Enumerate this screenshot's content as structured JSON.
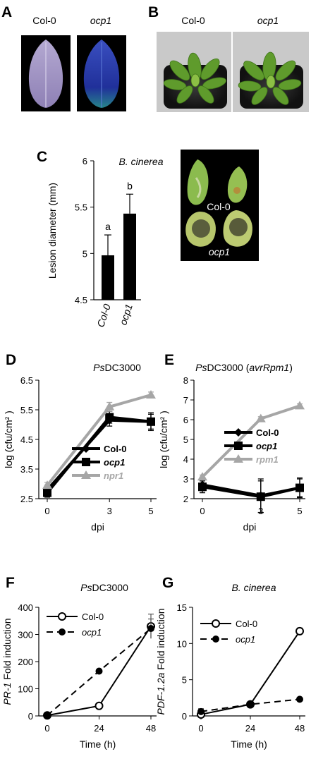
{
  "panel_A": {
    "letter": "A",
    "labels": [
      "Col-0",
      "ocp1"
    ]
  },
  "panel_B": {
    "letter": "B",
    "labels": [
      "Col-0",
      "ocp1"
    ]
  },
  "panel_C": {
    "letter": "C",
    "photo_labels": [
      "Col-0",
      "ocp1"
    ]
  },
  "panel_D": {
    "letter": "D"
  },
  "panel_E": {
    "letter": "E"
  },
  "panel_F": {
    "letter": "F"
  },
  "panel_G": {
    "letter": "G"
  },
  "colors": {
    "bar": "#000000",
    "col0_line": "#000000",
    "npr1_line": "#a6a6a6",
    "photo_bg": "#000000",
    "pot_bg": "#c9c9c9"
  },
  "chart_data": [
    {
      "id": "C",
      "type": "bar",
      "title": "B. cinerea",
      "xlabel": "",
      "ylabel": "Lesion diameter (mm)",
      "categories": [
        "Col-0",
        "ocp1"
      ],
      "values": [
        4.98,
        5.43
      ],
      "errors": [
        0.22,
        0.21
      ],
      "significance": [
        "a",
        "b"
      ],
      "ylim": [
        4.5,
        6
      ],
      "yticks": [
        "4.5",
        "5",
        "5.5",
        "6"
      ]
    },
    {
      "id": "D",
      "type": "line",
      "title": "PsDC3000",
      "title_prefix": "Ps",
      "title_rest": "DC3000",
      "xlabel": "dpi",
      "ylabel": "log (cfu/cm² )",
      "x": [
        0,
        3,
        5
      ],
      "xticks": [
        "0",
        "3",
        "5"
      ],
      "ylim": [
        2.5,
        6.5
      ],
      "yticks": [
        "2.5",
        "3.5",
        "4.5",
        "5.5",
        "6.5"
      ],
      "series": [
        {
          "name": "Col-0",
          "values": [
            2.8,
            5.15,
            5.1
          ],
          "errors": [
            0.15,
            0.2,
            0.25
          ],
          "marker": "diamond",
          "color": "#000000"
        },
        {
          "name": "ocp1",
          "values": [
            2.7,
            5.25,
            5.1
          ],
          "errors": [
            0.15,
            0.2,
            0.3
          ],
          "marker": "square",
          "color": "#000000"
        },
        {
          "name": "npr1",
          "values": [
            2.95,
            5.6,
            6.0
          ],
          "errors": [
            0.1,
            0.15,
            0.1
          ],
          "marker": "triangle",
          "color": "#a6a6a6"
        }
      ],
      "legend": "bottom-right"
    },
    {
      "id": "E",
      "type": "line",
      "title": "PsDC3000 (avrRpm1)",
      "title_prefix": "Ps",
      "title_mid": "DC3000 (",
      "title_ital": "avrRpm1",
      "title_end": ")",
      "xlabel": "dpi",
      "ylabel": "log (cfu/cm² )",
      "x": [
        0,
        3,
        5
      ],
      "xticks": [
        "0",
        "3",
        "5"
      ],
      "ylim": [
        2,
        8
      ],
      "yticks": [
        "2",
        "3",
        "4",
        "5",
        "6",
        "7",
        "8"
      ],
      "series": [
        {
          "name": "Col-0",
          "values": [
            2.7,
            2.15,
            2.55
          ],
          "errors": [
            0.3,
            0.85,
            0.45
          ],
          "marker": "diamond",
          "color": "#000000"
        },
        {
          "name": "ocp1",
          "values": [
            2.6,
            2.1,
            2.55
          ],
          "errors": [
            0.3,
            0.8,
            0.5
          ],
          "marker": "square",
          "color": "#000000"
        },
        {
          "name": "rpm1",
          "values": [
            3.1,
            6.05,
            6.7
          ],
          "errors": [
            0.1,
            0.1,
            0.1
          ],
          "marker": "triangle",
          "color": "#a6a6a6"
        }
      ],
      "legend": "middle-right"
    },
    {
      "id": "F",
      "type": "line",
      "title": "PsDC3000",
      "title_prefix": "Ps",
      "title_rest": "DC3000",
      "xlabel": "Time (h)",
      "ylabel_ital": "PR-1",
      "ylabel_rest": " Fold induction",
      "ylabel": "PR-1 Fold induction",
      "x": [
        0,
        24,
        48
      ],
      "xticks": [
        "0",
        "24",
        "48"
      ],
      "ylim": [
        0,
        400
      ],
      "yticks": [
        "0",
        "100",
        "200",
        "300",
        "400"
      ],
      "series": [
        {
          "name": "Col-0",
          "values": [
            2,
            37,
            330
          ],
          "errors": [
            2,
            5,
            45
          ],
          "marker": "open-circle",
          "dash": false
        },
        {
          "name": "ocp1",
          "values": [
            2,
            165,
            322
          ],
          "errors": [
            2,
            5,
            35
          ],
          "marker": "filled-circle",
          "dash": true
        }
      ],
      "legend": "top-left"
    },
    {
      "id": "G",
      "type": "line",
      "title": "B. cinerea",
      "xlabel": "Time (h)",
      "ylabel_ital": "PDF-1.2a",
      "ylabel_rest": " Fold induction",
      "ylabel": "PDF-1.2a Fold induction",
      "x": [
        0,
        24,
        48
      ],
      "xticks": [
        "0",
        "24",
        "48"
      ],
      "ylim": [
        0,
        15
      ],
      "yticks": [
        "0",
        "5",
        "10",
        "15"
      ],
      "series": [
        {
          "name": "Col-0",
          "values": [
            0.2,
            1.6,
            11.7
          ],
          "errors": [
            0.4,
            0.1,
            0.45
          ],
          "marker": "open-circle",
          "dash": false
        },
        {
          "name": "ocp1",
          "values": [
            0.6,
            1.6,
            2.3
          ],
          "errors": [
            0.4,
            0.1,
            0.1
          ],
          "marker": "filled-circle",
          "dash": true
        }
      ],
      "legend": "top-left"
    }
  ]
}
